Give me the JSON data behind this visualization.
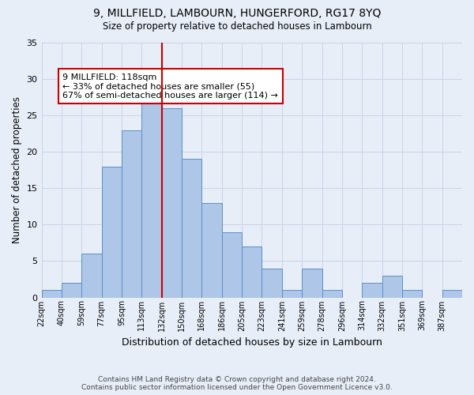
{
  "title": "9, MILLFIELD, LAMBOURN, HUNGERFORD, RG17 8YQ",
  "subtitle": "Size of property relative to detached houses in Lambourn",
  "xlabel": "Distribution of detached houses by size in Lambourn",
  "ylabel": "Number of detached properties",
  "bin_labels": [
    "22sqm",
    "40sqm",
    "59sqm",
    "77sqm",
    "95sqm",
    "113sqm",
    "132sqm",
    "150sqm",
    "168sqm",
    "186sqm",
    "205sqm",
    "223sqm",
    "241sqm",
    "259sqm",
    "278sqm",
    "296sqm",
    "314sqm",
    "332sqm",
    "351sqm",
    "369sqm",
    "387sqm"
  ],
  "bar_heights": [
    1,
    2,
    6,
    18,
    23,
    28,
    26,
    19,
    13,
    9,
    7,
    4,
    1,
    4,
    1,
    0,
    2,
    3,
    1,
    0,
    1
  ],
  "property_bin_index": 5,
  "bar_color": "#aec6e8",
  "bar_edge_color": "#5b8fc9",
  "vline_color": "#cc0000",
  "annotation_text": "9 MILLFIELD: 118sqm\n← 33% of detached houses are smaller (55)\n67% of semi-detached houses are larger (114) →",
  "annotation_box_facecolor": "#ffffff",
  "annotation_box_edgecolor": "#cc0000",
  "grid_color": "#c8d4e8",
  "background_color": "#e8eef8",
  "ylim": [
    0,
    35
  ],
  "yticks": [
    0,
    5,
    10,
    15,
    20,
    25,
    30,
    35
  ],
  "footer1": "Contains HM Land Registry data © Crown copyright and database right 2024.",
  "footer2": "Contains public sector information licensed under the Open Government Licence v3.0."
}
